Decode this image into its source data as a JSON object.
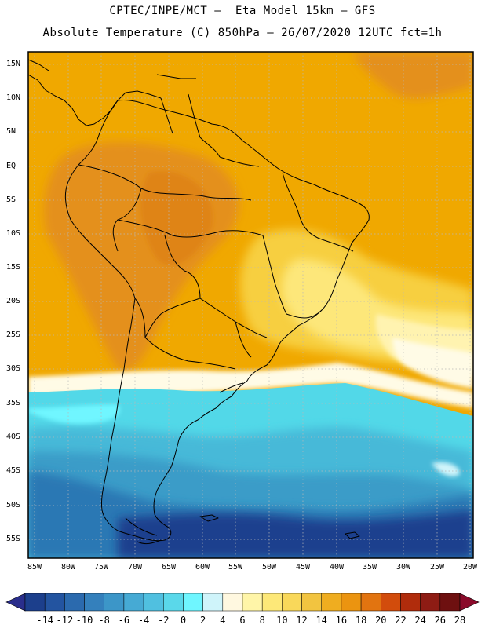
{
  "header": {
    "line1": "CPTEC/INPE/MCT –  Eta Model 15km – GFS",
    "line2": "Absolute Temperature (C) 850hPa – 26/07/2020 12UTC fct=1h"
  },
  "map": {
    "lat_labels": [
      "15N",
      "10N",
      "5N",
      "EQ",
      "5S",
      "10S",
      "15S",
      "20S",
      "25S",
      "30S",
      "35S",
      "40S",
      "45S",
      "50S",
      "55S"
    ],
    "lon_labels": [
      "85W",
      "80W",
      "75W",
      "70W",
      "65W",
      "60W",
      "55W",
      "50W",
      "45W",
      "40W",
      "35W",
      "30W",
      "25W",
      "20W"
    ],
    "colors": {
      "warm_orange": "#f0a800",
      "dark_orange": "#e48c1c",
      "light_yellow": "#fde77a",
      "cream": "#fffbe6",
      "cyan": "#52d8e8",
      "mid_blue": "#2b7ab8",
      "dark_blue": "#1e3f8e"
    }
  },
  "colorbar": {
    "labels": [
      "-14",
      "-12",
      "-10",
      "-8",
      "-6",
      "-4",
      "-2",
      "0",
      "2",
      "4",
      "6",
      "8",
      "10",
      "12",
      "14",
      "16",
      "18",
      "20",
      "22",
      "24",
      "26",
      "28"
    ],
    "colors": [
      "#1c3f8c",
      "#2354a0",
      "#2b6aae",
      "#3480bc",
      "#3c96c8",
      "#46aad4",
      "#50c0e0",
      "#5ad8ea",
      "#6ff6ff",
      "#cff4fa",
      "#fff8e0",
      "#fff5a8",
      "#fde878",
      "#f9d85a",
      "#f2c440",
      "#efad20",
      "#eb9410",
      "#e27410",
      "#d24c0c",
      "#b02c0c",
      "#8e1c14",
      "#6e1010"
    ],
    "low_arrow_color": "#2a2e8c",
    "high_arrow_color": "#8a0a2a"
  }
}
